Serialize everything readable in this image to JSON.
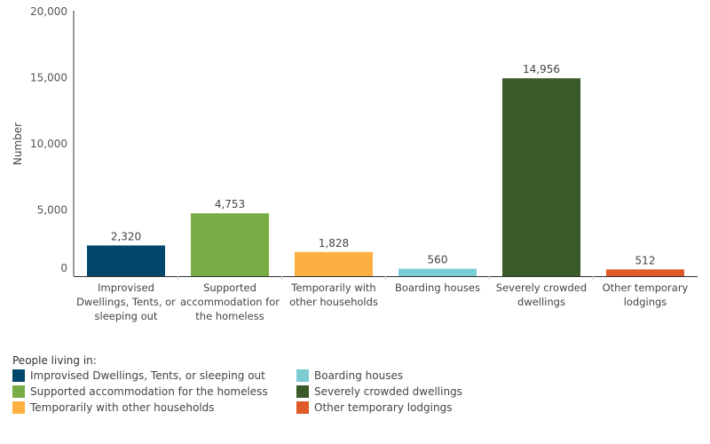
{
  "chart_data": {
    "type": "bar",
    "title": "",
    "xlabel": "",
    "ylabel": "Number",
    "ylim": [
      0,
      20000
    ],
    "yticks": [
      0,
      5000,
      10000,
      15000,
      20000
    ],
    "ytick_labels": [
      "0",
      "5,000",
      "10,000",
      "15,000",
      "20,000"
    ],
    "grid": false,
    "categories": [
      [
        "Improvised",
        "Dwellings, Tents, or",
        "sleeping out"
      ],
      [
        "Supported",
        "accommodation for",
        "the homeless"
      ],
      [
        "Temporarily with",
        "other households"
      ],
      [
        "Boarding houses"
      ],
      [
        "Severely crowded",
        "dwellings"
      ],
      [
        "Other temporary",
        "lodgings"
      ]
    ],
    "values": [
      2320,
      4753,
      1828,
      560,
      14956,
      512
    ],
    "value_labels": [
      "2,320",
      "4,753",
      "1,828",
      "560",
      "14,956",
      "512"
    ],
    "colors": [
      "#00476b",
      "#78ad45",
      "#fdb042",
      "#7ccdd3",
      "#3a5a28",
      "#e05a27"
    ],
    "legend": {
      "placement": "bottom",
      "title": "People living in:",
      "items": [
        {
          "label": "Improvised Dwellings, Tents, or sleeping out",
          "color": "#00476b"
        },
        {
          "label": "Boarding houses",
          "color": "#7ccdd3"
        },
        {
          "label": "Supported accommodation for the homeless",
          "color": "#78ad45"
        },
        {
          "label": "Severely crowded dwellings",
          "color": "#3a5a28"
        },
        {
          "label": "Temporarily with other households",
          "color": "#fdb042"
        },
        {
          "label": "Other temporary lodgings",
          "color": "#e05a27"
        }
      ]
    }
  }
}
